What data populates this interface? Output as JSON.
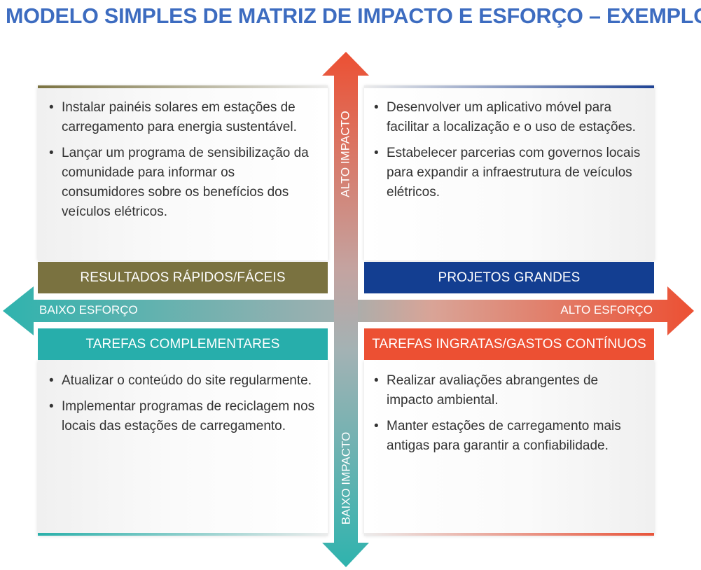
{
  "title": "MODELO SIMPLES DE MATRIZ DE IMPACTO E ESFORÇO – EXEMPLO",
  "axes": {
    "high_impact": "ALTO IMPACTO",
    "low_impact": "BAIXO IMPACTO",
    "low_effort": "BAIXO ESFORÇO",
    "high_effort": "ALTO ESFORÇO"
  },
  "quadrants": {
    "top_left": {
      "label": "RESULTADOS RÁPIDOS/FÁCEIS",
      "color": "#7a7240",
      "items": [
        "Instalar painéis solares em estações de carregamento para energia sustentável.",
        "Lançar um programa de sensibilização da comunidade para informar os consumidores sobre os benefícios dos veículos elétricos."
      ]
    },
    "top_right": {
      "label": "PROJETOS GRANDES",
      "color": "#133e91",
      "items": [
        "Desenvolver um aplicativo móvel para facilitar a localização e o uso de estações.",
        "Estabelecer parcerias com governos locais para expandir a infraestrutura de veículos elétricos."
      ]
    },
    "bottom_left": {
      "label": "TAREFAS COMPLEMENTARES",
      "color": "#27aeab",
      "items": [
        "Atualizar o conteúdo do site regularmente.",
        "Implementar programas de reciclagem nos locais das estações de carregamento."
      ]
    },
    "bottom_right": {
      "label": "TAREFAS INGRATAS/GASTOS CONTÍNUOS",
      "color": "#ec5033",
      "items": [
        "Realizar avaliações abrangentes de impacto ambiental.",
        "Manter estações de carregamento mais antigas para garantir a confiabilidade."
      ]
    }
  }
}
